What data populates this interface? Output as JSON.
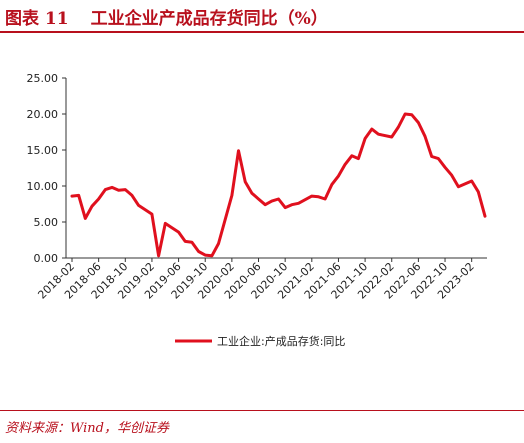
{
  "header": {
    "figure_no": "图表 11",
    "figure_title": "工业企业产成品存货同比（%）"
  },
  "source": "资料来源：Wind，华创证券",
  "colors": {
    "accent": "#b8101d",
    "series": "#e0101e"
  },
  "chart_data": {
    "type": "line",
    "title": "工业企业产成品存货同比（%）",
    "xlabel": "",
    "ylabel": "",
    "ylim": [
      0,
      25
    ],
    "y_ticks": [
      "0.00",
      "5.00",
      "10.00",
      "15.00",
      "20.00",
      "25.00"
    ],
    "x_tick_labels": [
      "2018-02",
      "2018-06",
      "2018-10",
      "2019-02",
      "2019-06",
      "2019-10",
      "2020-02",
      "2020-06",
      "2020-10",
      "2021-02",
      "2021-06",
      "2021-10",
      "2022-02",
      "2022-06",
      "2022-10",
      "2023-02"
    ],
    "grid": false,
    "legend_position": "bottom",
    "series": [
      {
        "name": "工业企业:产成品存货:同比",
        "x": [
          "2018-02",
          "2018-03",
          "2018-04",
          "2018-05",
          "2018-06",
          "2018-07",
          "2018-08",
          "2018-09",
          "2018-10",
          "2018-11",
          "2018-12",
          "2019-02",
          "2019-03",
          "2019-04",
          "2019-05",
          "2019-06",
          "2019-07",
          "2019-08",
          "2019-09",
          "2019-10",
          "2019-11",
          "2019-12",
          "2020-02",
          "2020-03",
          "2020-04",
          "2020-05",
          "2020-06",
          "2020-07",
          "2020-08",
          "2020-09",
          "2020-10",
          "2020-11",
          "2020-12",
          "2021-02",
          "2021-03",
          "2021-04",
          "2021-05",
          "2021-06",
          "2021-07",
          "2021-08",
          "2021-09",
          "2021-10",
          "2021-11",
          "2021-12",
          "2022-02",
          "2022-03",
          "2022-04",
          "2022-05",
          "2022-06",
          "2022-07",
          "2022-08",
          "2022-09",
          "2022-10",
          "2022-11",
          "2022-12",
          "2023-02",
          "2023-03",
          "2023-04"
        ],
        "values": [
          8.6,
          8.7,
          5.5,
          7.2,
          8.2,
          9.5,
          9.8,
          9.4,
          9.5,
          8.7,
          7.3,
          6.1,
          0.3,
          4.8,
          4.2,
          3.6,
          2.3,
          2.2,
          0.9,
          0.4,
          0.3,
          2.0,
          8.7,
          14.9,
          10.6,
          9.0,
          8.2,
          7.4,
          7.9,
          8.2,
          7.0,
          7.4,
          7.6,
          8.6,
          8.5,
          8.2,
          10.2,
          11.4,
          13.0,
          14.2,
          13.8,
          16.6,
          17.9,
          17.2,
          16.8,
          18.2,
          20.0,
          19.9,
          18.8,
          16.9,
          14.1,
          13.8,
          12.6,
          11.5,
          9.9,
          10.7,
          9.2,
          5.8
        ]
      }
    ]
  }
}
